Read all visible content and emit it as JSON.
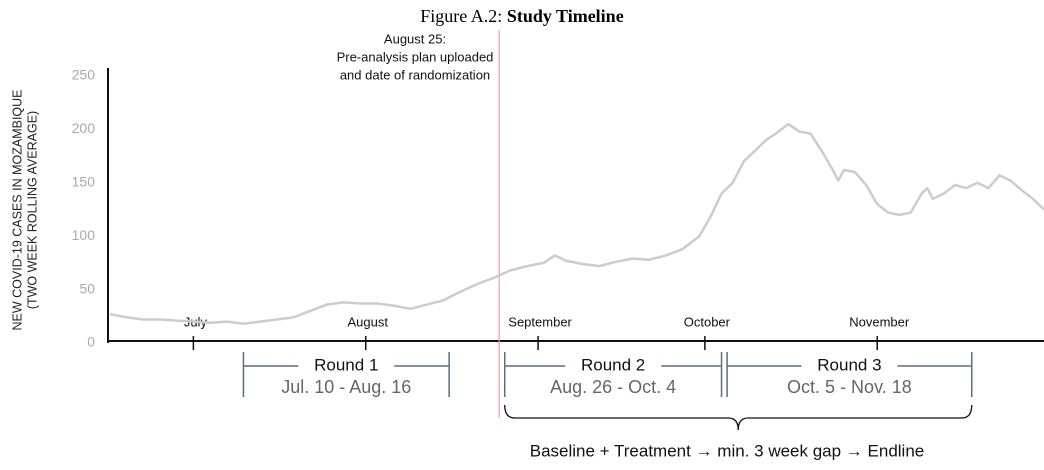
{
  "chart_data": {
    "type": "line",
    "figure_label": "Figure A.2:",
    "title": "Study Timeline",
    "y_label": [
      "NEW COVID-19 CASES IN MOZAMBIQUE",
      "(TWO WEEK ROLLING AVERAGE)"
    ],
    "x": [
      0,
      3,
      6,
      9,
      12,
      15,
      18,
      21,
      24,
      27,
      30,
      33,
      36,
      39,
      42,
      45,
      48,
      51,
      54,
      57,
      60,
      63,
      66,
      69,
      72,
      75,
      78,
      80,
      82,
      85,
      88,
      91,
      94,
      97,
      100,
      103,
      106,
      108,
      110,
      112,
      114,
      116,
      118,
      120,
      122,
      124,
      126,
      128,
      130,
      131,
      132,
      134,
      136,
      138,
      140,
      142,
      144,
      146,
      147,
      148,
      150,
      152,
      154,
      156,
      158,
      160,
      162,
      164,
      166,
      168
    ],
    "series": [
      {
        "name": "New cases",
        "color": "#cccccc",
        "values": [
          27,
          24,
          22,
          22,
          21,
          20,
          19,
          20,
          18,
          20,
          22,
          24,
          30,
          36,
          38,
          37,
          37,
          35,
          32,
          36,
          40,
          48,
          55,
          61,
          68,
          72,
          75,
          82,
          77,
          74,
          72,
          76,
          79,
          78,
          82,
          88,
          100,
          118,
          140,
          150,
          170,
          180,
          190,
          197,
          205,
          198,
          196,
          180,
          162,
          152,
          162,
          160,
          148,
          130,
          122,
          120,
          122,
          140,
          145,
          135,
          140,
          148,
          145,
          150,
          145,
          157,
          152,
          143,
          135,
          125
        ]
      }
    ],
    "xlim": [
      0,
      168
    ],
    "xticks": [
      {
        "value": 15,
        "label": "July"
      },
      {
        "value": 46,
        "label": "August"
      },
      {
        "value": 77,
        "label": "September"
      },
      {
        "value": 107,
        "label": "October"
      },
      {
        "value": 138,
        "label": "November"
      }
    ],
    "ylim": [
      0,
      250
    ],
    "yticks": [
      0,
      50,
      100,
      150,
      200,
      250
    ],
    "event": {
      "x": 70,
      "color": "#f4a0a0",
      "text": [
        "August 25:",
        "Pre-analysis plan uploaded",
        "and date of randomization"
      ]
    },
    "rounds": [
      {
        "label": "Round 1",
        "dates": "Jul. 10 - Aug. 16",
        "start": 24,
        "end": 61
      },
      {
        "label": "Round 2",
        "dates": "Aug. 26 - Oct. 4",
        "start": 71,
        "end": 110
      },
      {
        "label": "Round 3",
        "dates": "Oct. 5 - Nov. 18",
        "start": 111,
        "end": 155
      }
    ],
    "design_note": "Baseline + Treatment → min. 3 week gap → Endline"
  }
}
